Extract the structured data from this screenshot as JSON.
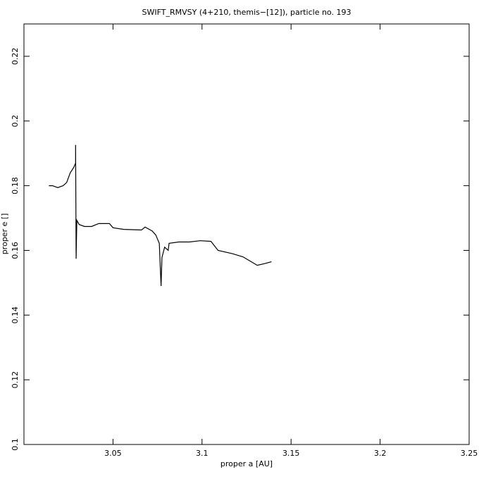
{
  "chart_data": {
    "type": "line",
    "title": "SWIFT_RMVSY (4+210, themis−[12]), particle no. 193",
    "x_label": "proper a [AU]",
    "y_label": "proper e []",
    "xlim": [
      3.0,
      3.25
    ],
    "xticks": [
      3.05,
      3.1,
      3.15,
      3.2,
      3.25
    ],
    "ylim": [
      0.1,
      0.23
    ],
    "yticks": [
      0.1,
      0.12,
      0.14,
      0.16,
      0.18,
      0.2,
      0.22
    ],
    "series": [
      {
        "color": "#000000",
        "x": [
          3.014,
          3.016,
          3.019,
          3.022,
          3.024,
          3.026,
          3.028,
          3.029,
          3.029,
          3.0293,
          3.0297,
          3.031,
          3.034,
          3.038,
          3.042,
          3.048,
          3.05,
          3.056,
          3.066,
          3.068,
          3.072,
          3.074,
          3.076,
          3.077,
          3.0775,
          3.079,
          3.081,
          3.0815,
          3.087,
          3.093,
          3.099,
          3.105,
          3.109,
          3.117,
          3.123,
          3.127,
          3.131,
          3.135,
          3.139
        ],
        "values": [
          0.18,
          0.18,
          0.1794,
          0.18,
          0.181,
          0.184,
          0.1857,
          0.187,
          0.1926,
          0.1574,
          0.1693,
          0.168,
          0.1674,
          0.1674,
          0.1683,
          0.1683,
          0.167,
          0.1665,
          0.1663,
          0.1672,
          0.166,
          0.1648,
          0.1622,
          0.149,
          0.1578,
          0.161,
          0.16,
          0.1622,
          0.1626,
          0.1626,
          0.163,
          0.1628,
          0.16,
          0.159,
          0.158,
          0.1567,
          0.1554,
          0.1559,
          0.1565
        ]
      }
    ]
  }
}
